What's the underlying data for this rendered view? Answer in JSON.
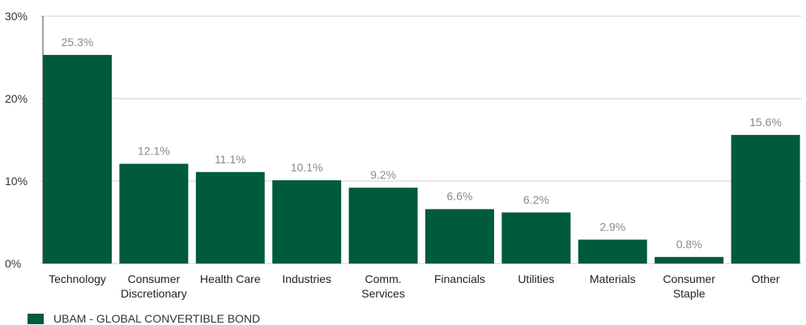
{
  "chart_data": {
    "type": "bar",
    "categories": [
      [
        "Technology"
      ],
      [
        "Consumer",
        "Discretionary"
      ],
      [
        "Health Care"
      ],
      [
        "Industries"
      ],
      [
        "Comm.",
        "Services"
      ],
      [
        "Financials"
      ],
      [
        "Utilities"
      ],
      [
        "Materials"
      ],
      [
        "Consumer",
        "Staple"
      ],
      [
        "Other"
      ]
    ],
    "series": [
      {
        "name": "UBAM - GLOBAL CONVERTIBLE BOND",
        "values": [
          25.3,
          12.1,
          11.1,
          10.1,
          9.2,
          6.6,
          6.2,
          2.9,
          0.8,
          15.6
        ],
        "labels": [
          "25.3%",
          "12.1%",
          "11.1%",
          "10.1%",
          "9.2%",
          "6.6%",
          "6.2%",
          "2.9%",
          "0.8%",
          "15.6%"
        ]
      }
    ],
    "yticks": [
      0,
      10,
      20,
      30
    ],
    "ytick_labels": [
      "0%",
      "10%",
      "20%",
      "30%"
    ],
    "ylim": [
      0,
      30
    ],
    "grid": true,
    "legend_position": "bottom-left",
    "bar_color": "#005a3c",
    "grid_color": "#cfcfcf"
  }
}
